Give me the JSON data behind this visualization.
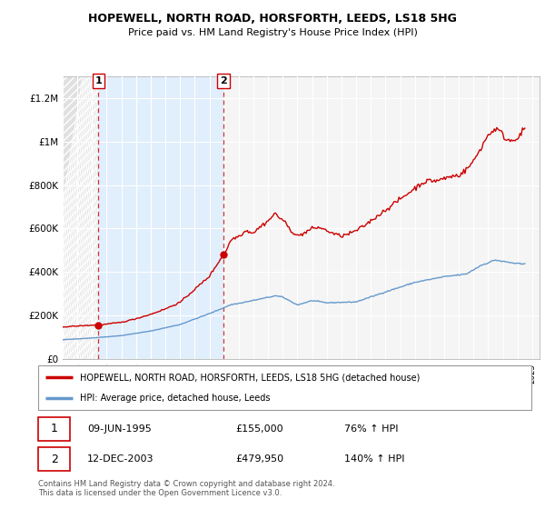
{
  "title": "HOPEWELL, NORTH ROAD, HORSFORTH, LEEDS, LS18 5HG",
  "subtitle": "Price paid vs. HM Land Registry's House Price Index (HPI)",
  "ylim": [
    0,
    1300000
  ],
  "yticks": [
    0,
    200000,
    400000,
    600000,
    800000,
    1000000,
    1200000
  ],
  "ytick_labels": [
    "£0",
    "£200K",
    "£400K",
    "£600K",
    "£800K",
    "£1M",
    "£1.2M"
  ],
  "background_color": "#ffffff",
  "plot_bg_color": "#f5f5f5",
  "hpi_color": "#6699cc",
  "price_color": "#cc0000",
  "sale1_date": 1995.44,
  "sale1_price": 155000,
  "sale2_date": 2003.95,
  "sale2_price": 479950,
  "legend_label_price": "HOPEWELL, NORTH ROAD, HORSFORTH, LEEDS, LS18 5HG (detached house)",
  "legend_label_hpi": "HPI: Average price, detached house, Leeds",
  "annotation1_date": "09-JUN-1995",
  "annotation1_price": "£155,000",
  "annotation1_hpi": "76% ↑ HPI",
  "annotation2_date": "12-DEC-2003",
  "annotation2_price": "£479,950",
  "annotation2_hpi": "140% ↑ HPI",
  "footnote": "Contains HM Land Registry data © Crown copyright and database right 2024.\nThis data is licensed under the Open Government Licence v3.0.",
  "hatch_color": "#d0d0d0",
  "between_color": "#ddeeff",
  "xmin": 1993,
  "xmax": 2025.5
}
